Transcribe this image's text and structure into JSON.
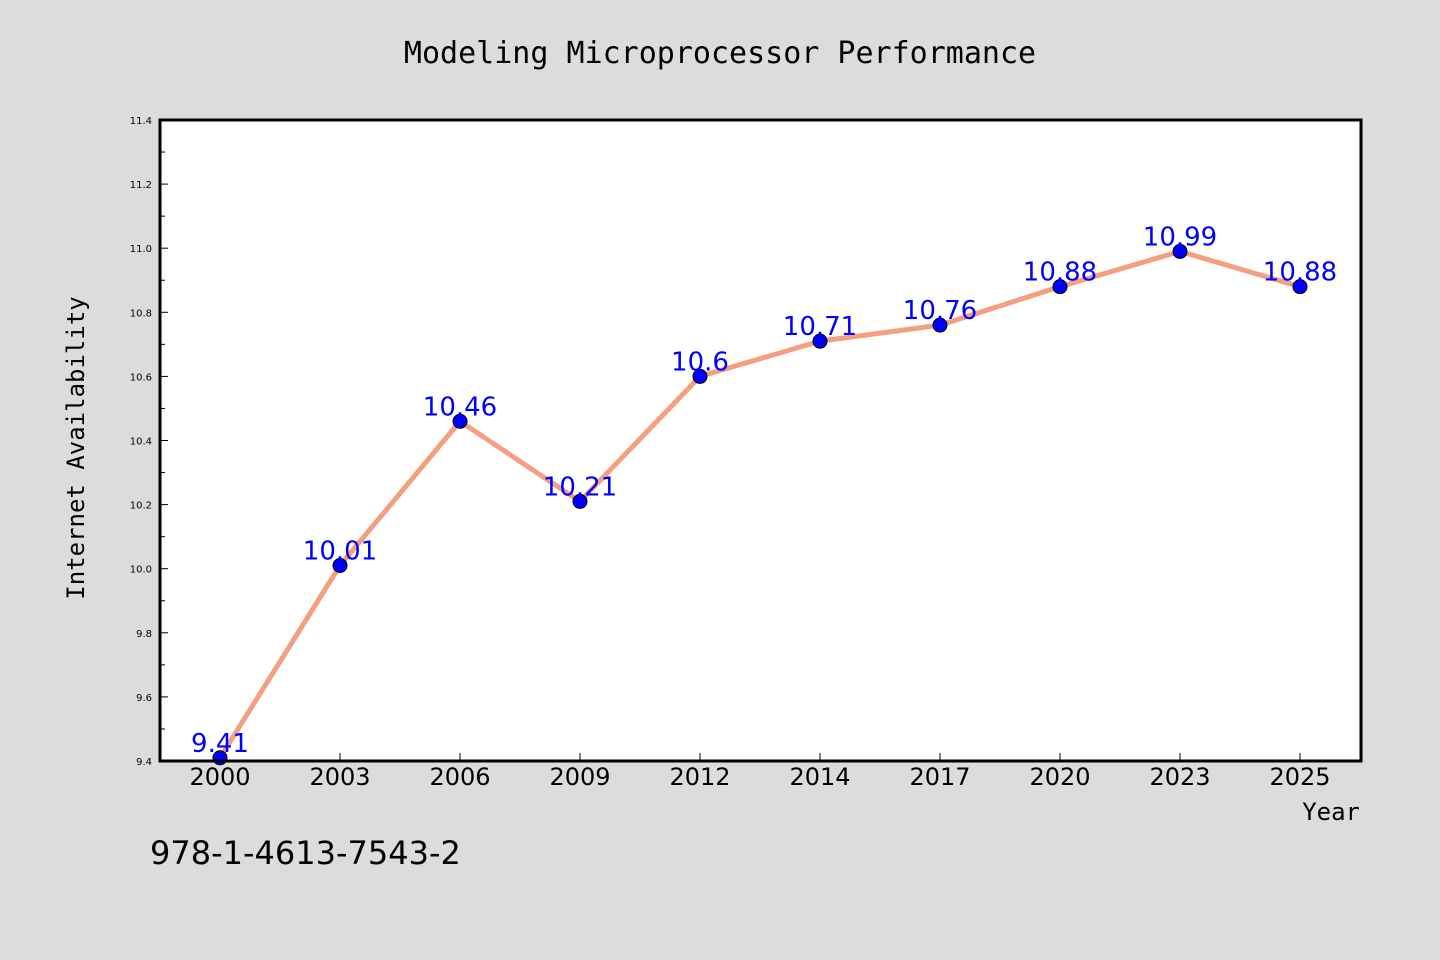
{
  "chart_data": {
    "type": "line",
    "title": "Modeling Microprocessor Performance",
    "xlabel": "Year",
    "ylabel": "Internet Availability",
    "categories": [
      "2000",
      "2003",
      "2006",
      "2009",
      "2012",
      "2014",
      "2017",
      "2020",
      "2023",
      "2025"
    ],
    "series": [
      {
        "values": [
          9.41,
          10.01,
          10.46,
          10.21,
          10.6,
          10.71,
          10.76,
          10.88,
          10.99,
          10.88
        ],
        "labels": [
          "9.41",
          "10.01",
          "10.46",
          "10.21",
          "10.6",
          "10.71",
          "10.76",
          "10.88",
          "10.99",
          "10.88"
        ],
        "line_color": "#f4a080",
        "marker_color": "#0000ff"
      }
    ],
    "ylim": [
      9.4,
      11.4
    ],
    "yticks": [
      "9.4",
      "9.6",
      "9.8",
      "10.0",
      "10.2",
      "10.4",
      "10.6",
      "10.8",
      "11.0",
      "11.2",
      "11.4"
    ],
    "grid": false,
    "legend": "none",
    "label_color": "#0000ff",
    "background_color": "#dcdcdc",
    "plot_background_color": "#ffffff"
  },
  "footer": {
    "text": "978-1-4613-7543-2"
  }
}
